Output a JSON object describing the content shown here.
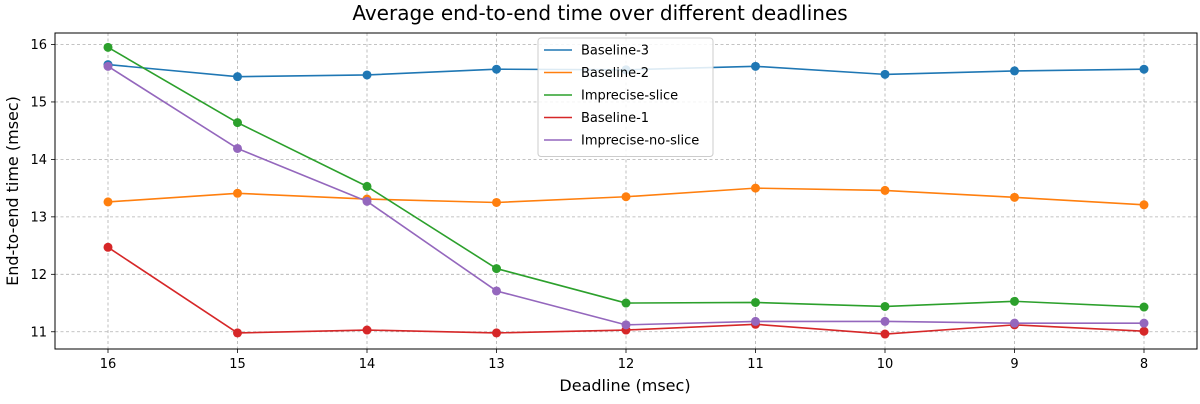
{
  "chart_data": {
    "type": "line",
    "title": "Average end-to-end time over different deadlines",
    "xlabel": "Deadline (msec)",
    "ylabel": "End-to-end time (msec)",
    "x": [
      16,
      15,
      14,
      13,
      12,
      11,
      10,
      9,
      8
    ],
    "x_tick_labels": [
      "16",
      "15",
      "14",
      "13",
      "12",
      "11",
      "10",
      "9",
      "8"
    ],
    "x_axis_reversed": true,
    "ylim": [
      10.7,
      16.2
    ],
    "y_ticks": [
      11,
      12,
      13,
      14,
      15,
      16
    ],
    "y_tick_labels": [
      "11",
      "12",
      "13",
      "14",
      "15",
      "16"
    ],
    "grid": true,
    "grid_style": "dashed",
    "legend_position": "top-center",
    "markers": "circle",
    "series": [
      {
        "name": "Baseline-3",
        "color": "#1f77b4",
        "values": [
          15.65,
          15.44,
          15.47,
          15.57,
          15.56,
          15.62,
          15.48,
          15.54,
          15.57
        ]
      },
      {
        "name": "Baseline-2",
        "color": "#ff7f0e",
        "values": [
          13.26,
          13.41,
          13.31,
          13.25,
          13.35,
          13.5,
          13.46,
          13.34,
          13.21
        ]
      },
      {
        "name": "Imprecise-slice",
        "color": "#2ca02c",
        "values": [
          15.95,
          14.64,
          13.53,
          12.1,
          11.5,
          11.51,
          11.44,
          11.53,
          11.43
        ]
      },
      {
        "name": "Baseline-1",
        "color": "#d62728",
        "values": [
          12.47,
          10.98,
          11.03,
          10.98,
          11.03,
          11.13,
          10.96,
          11.12,
          11.01
        ]
      },
      {
        "name": "Imprecise-no-slice",
        "color": "#9467bd",
        "values": [
          15.62,
          14.19,
          13.27,
          11.71,
          11.12,
          11.18,
          11.18,
          11.15,
          11.15
        ]
      }
    ]
  }
}
